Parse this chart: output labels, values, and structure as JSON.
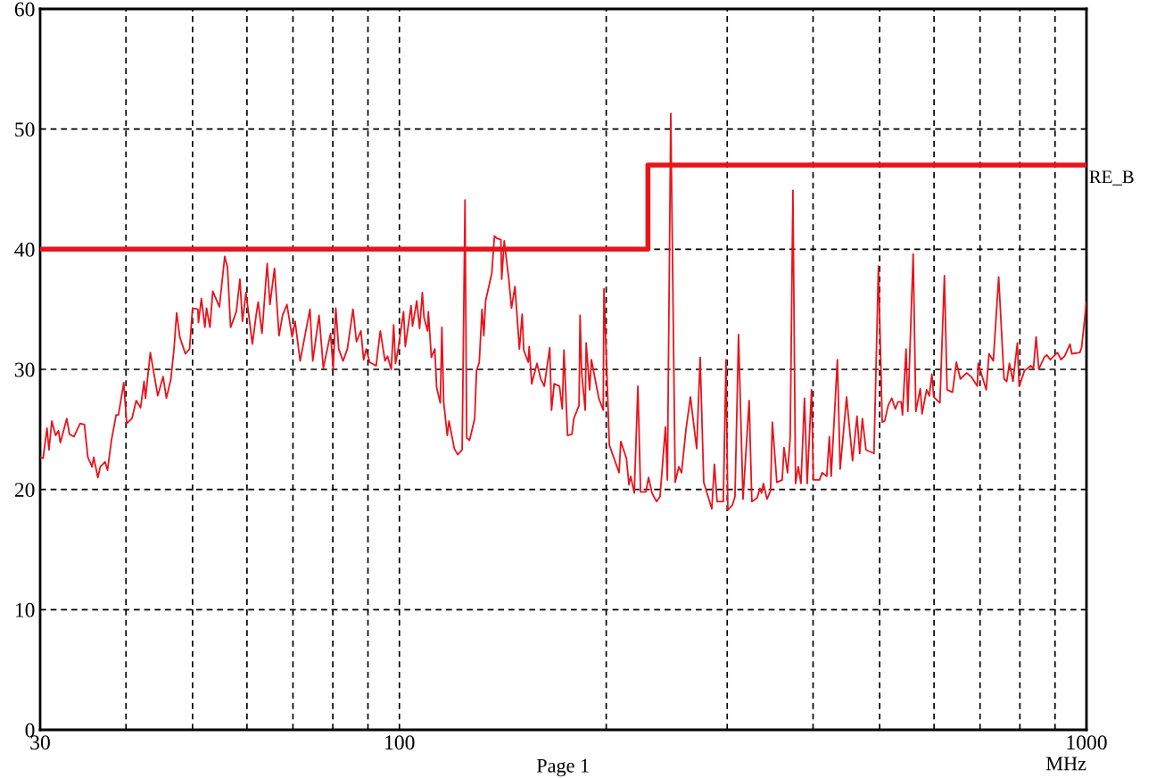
{
  "chart_data": {
    "type": "line",
    "xlabel": "MHz",
    "annotations": [
      "Page 1"
    ],
    "log": "x",
    "grid": true,
    "legend": false,
    "line_style": "solid",
    "marker": "none",
    "xlim": [
      30,
      1000
    ],
    "xticks": [
      30,
      {
        "value": 40,
        "label": null
      },
      {
        "value": 50,
        "label": null
      },
      {
        "value": 60,
        "label": null
      },
      {
        "value": 70,
        "label": null
      },
      {
        "value": 80,
        "label": null
      },
      {
        "value": 90,
        "label": null
      },
      100,
      {
        "value": 200,
        "label": null
      },
      {
        "value": 300,
        "label": null
      },
      {
        "value": 400,
        "label": null
      },
      {
        "value": 500,
        "label": null
      },
      {
        "value": 600,
        "label": null
      },
      {
        "value": 700,
        "label": null
      },
      {
        "value": 800,
        "label": null
      },
      {
        "value": 900,
        "label": null
      },
      1000
    ],
    "ylim": [
      0,
      60
    ],
    "yticks": [
      0,
      10,
      20,
      30,
      40,
      50,
      60
    ],
    "series": [
      {
        "color": "#e8141c",
        "x": [
          30.0,
          30.3,
          30.7,
          30.9,
          31.2,
          31.6,
          31.9,
          32.1,
          32.8,
          33.1,
          33.6,
          34.3,
          34.8,
          35.2,
          35.7,
          35.9,
          36.4,
          36.7,
          37.3,
          37.6,
          38.1,
          38.7,
          39.0,
          39.7,
          40.1,
          40.8,
          41.4,
          42.0,
          42.5,
          42.7,
          43.4,
          44.5,
          45.3,
          45.8,
          46.5,
          47.0,
          47.4,
          47.9,
          48.8,
          49.5,
          50.0,
          50.9,
          51.0,
          51.5,
          52.1,
          52.4,
          53.0,
          53.5,
          54.7,
          55.7,
          56.2,
          56.8,
          57.9,
          58.6,
          59.1,
          59.8,
          61.1,
          61.9,
          62.3,
          63.1,
          64.2,
          64.8,
          65.8,
          66.8,
          67.6,
          68.6,
          69.8,
          70.5,
          71.7,
          74.1,
          74.8,
          76.4,
          77.5,
          79.4,
          80.1,
          80.8,
          81.6,
          82.8,
          84.0,
          85.6,
          86.6,
          87.9,
          88.7,
          89.5,
          90.5,
          92.5,
          93.8,
          95.3,
          96.1,
          97.3,
          98.1,
          98.7,
          99.6,
          101.4,
          102.0,
          104.0,
          104.5,
          106.0,
          107.0,
          108.0,
          108.6,
          109.9,
          110.2,
          111.3,
          112.6,
          113.3,
          114.7,
          115.3,
          116.0,
          117.4,
          118.1,
          120.2,
          121.6,
          123.4,
          124.6,
          125.3,
          126.5,
          128.7,
          129.5,
          130.7,
          131.9,
          132.7,
          133.5,
          136.3,
          137.5,
          138.7,
          140.5,
          140.9,
          142.1,
          144.3,
          145.6,
          147.3,
          149.5,
          150.9,
          151.7,
          154.0,
          154.5,
          155.8,
          158.6,
          160.6,
          162.5,
          165.5,
          166.5,
          168.0,
          171.0,
          172.6,
          173.6,
          175.7,
          178.3,
          179.4,
          182.6,
          183.2,
          184.2,
          186.4,
          187.0,
          189.2,
          190.3,
          195.1,
          198.0,
          198.5,
          202.1,
          208.8,
          210.0,
          214.0,
          215.8,
          217.1,
          219.7,
          222.4,
          224.4,
          228.4,
          230.5,
          233.2,
          236.7,
          239.5,
          243.9,
          245.5,
          248.3,
          252.0,
          255.1,
          257.4,
          261.3,
          265.2,
          270.8,
          274.0,
          277.3,
          284.9,
          287.4,
          290.0,
          296.1,
          298.8,
          300.6,
          305.2,
          307.9,
          311.6,
          316.3,
          322.9,
          325.8,
          331.7,
          334.7,
          336.7,
          338.7,
          342.8,
          346.9,
          349.0,
          354.3,
          360.7,
          362.9,
          367.2,
          370.5,
          373.9,
          377.2,
          380.6,
          384.1,
          388.7,
          392.2,
          398.0,
          400.4,
          408.7,
          412.4,
          418.8,
          422.5,
          425.0,
          434.0,
          438.0,
          447.6,
          456.6,
          463.5,
          467.7,
          471.9,
          477.6,
          490.6,
          498.0,
          504.3,
          508.5,
          514.6,
          520.7,
          527.0,
          531.8,
          537.5,
          539.8,
          546.3,
          549.6,
          559.5,
          564.5,
          573.0,
          576.4,
          585.2,
          590.4,
          595.7,
          599.3,
          611.9,
          621.2,
          626.8,
          638.3,
          646.6,
          655.3,
          669.2,
          679.3,
          693.6,
          695.7,
          714.7,
          721.3,
          731.9,
          745.1,
          758.6,
          765.5,
          772.4,
          781.7,
          793.3,
          798.1,
          812.5,
          829.7,
          837.2,
          844.7,
          852.3,
          867.7,
          875.5,
          886.0,
          907.5,
          918.4,
          929.4,
          946.4,
          952.0,
          977.9,
          983.7,
          1000
        ],
        "values": [
          22.7,
          22.6,
          25.1,
          23.3,
          25.7,
          24.5,
          24.9,
          23.9,
          25.9,
          24.6,
          24.4,
          25.5,
          25.4,
          22.7,
          21.9,
          22.7,
          21.0,
          21.9,
          22.3,
          21.6,
          24.1,
          26.2,
          26.2,
          28.9,
          25.5,
          25.9,
          27.4,
          26.8,
          29.0,
          27.6,
          31.4,
          27.8,
          29.4,
          27.6,
          29.2,
          31.8,
          34.7,
          32.7,
          31.3,
          31.7,
          35.1,
          35.0,
          33.9,
          35.9,
          33.5,
          35.1,
          33.5,
          36.5,
          35.2,
          39.4,
          38.5,
          33.5,
          34.8,
          37.5,
          34.0,
          36.4,
          32.1,
          34.6,
          35.6,
          33.0,
          38.8,
          35.4,
          38.4,
          32.8,
          34.5,
          35.4,
          32.7,
          34.0,
          30.7,
          35.0,
          30.7,
          34.5,
          30.1,
          33.0,
          30.0,
          35.1,
          31.7,
          30.7,
          31.7,
          35.0,
          32.3,
          33.2,
          30.8,
          31.7,
          30.6,
          30.3,
          33.2,
          30.7,
          31.1,
          30.0,
          33.7,
          30.5,
          31.7,
          34.8,
          31.9,
          35.3,
          33.6,
          35.7,
          33.4,
          36.4,
          34.3,
          33.2,
          34.8,
          31.0,
          31.7,
          28.5,
          27.2,
          33.5,
          27.3,
          24.5,
          25.7,
          23.4,
          22.9,
          23.3,
          44.1,
          24.3,
          24.1,
          25.9,
          29.9,
          30.6,
          35.0,
          32.8,
          35.7,
          38.0,
          41.1,
          40.9,
          40.8,
          37.5,
          40.7,
          37.5,
          35.1,
          36.9,
          31.7,
          34.6,
          31.6,
          30.6,
          31.9,
          28.8,
          30.5,
          29.2,
          28.6,
          31.8,
          26.6,
          28.8,
          28.6,
          26.7,
          31.6,
          24.5,
          24.6,
          25.9,
          27.0,
          34.5,
          29.7,
          26.6,
          32.2,
          28.3,
          30.8,
          27.6,
          26.6,
          36.7,
          23.7,
          21.4,
          24.0,
          22.6,
          20.4,
          21.1,
          19.7,
          28.6,
          19.8,
          19.8,
          21.0,
          19.7,
          19.0,
          19.4,
          25.2,
          20.8,
          51.3,
          20.6,
          21.9,
          21.4,
          25.0,
          27.7,
          23.4,
          31.0,
          20.6,
          18.4,
          22.1,
          19.0,
          19.0,
          30.8,
          18.3,
          18.7,
          19.4,
          32.9,
          19.2,
          27.4,
          19.0,
          19.3,
          20.1,
          19.7,
          20.5,
          19.2,
          19.9,
          25.6,
          20.6,
          20.8,
          23.5,
          21.4,
          24.3,
          44.9,
          20.5,
          21.9,
          20.5,
          27.6,
          20.5,
          28.3,
          20.8,
          20.8,
          21.4,
          21.1,
          24.4,
          21.1,
          30.8,
          21.7,
          27.7,
          22.4,
          26.1,
          23.0,
          25.9,
          23.3,
          23.0,
          38.6,
          25.6,
          25.7,
          27.0,
          27.6,
          26.7,
          27.3,
          27.3,
          26.2,
          31.7,
          26.5,
          39.6,
          26.5,
          28.4,
          26.3,
          28.3,
          27.8,
          29.6,
          27.7,
          27.2,
          37.8,
          28.3,
          28.1,
          30.6,
          29.2,
          29.7,
          29.4,
          28.6,
          30.5,
          28.3,
          31.3,
          30.7,
          37.7,
          29.2,
          29.0,
          30.5,
          29.0,
          32.2,
          28.6,
          29.9,
          30.3,
          30.1,
          32.7,
          30.0,
          31.0,
          31.2,
          30.8,
          31.4,
          30.8,
          31.1,
          32.1,
          31.3,
          31.4,
          31.8,
          35.6
        ]
      },
      {
        "type": "step",
        "name": "RE_B",
        "color": "#e8141c",
        "x": [
          30,
          230,
          1000
        ],
        "values": [
          40,
          47,
          47
        ]
      }
    ]
  }
}
